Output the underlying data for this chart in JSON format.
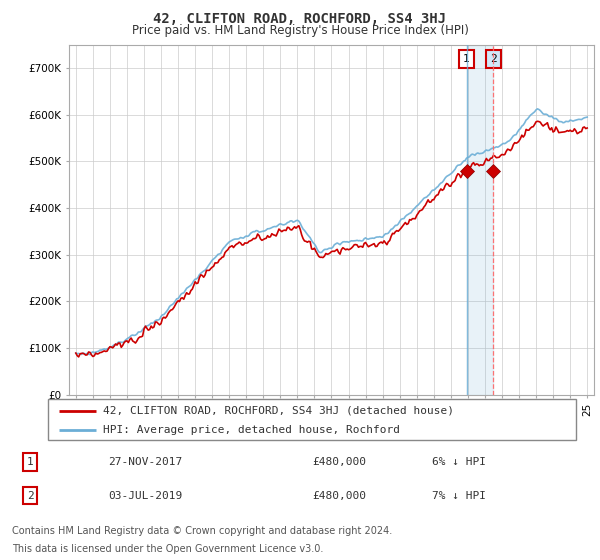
{
  "title": "42, CLIFTON ROAD, ROCHFORD, SS4 3HJ",
  "subtitle": "Price paid vs. HM Land Registry's House Price Index (HPI)",
  "ylim": [
    0,
    750000
  ],
  "yticks": [
    0,
    100000,
    200000,
    300000,
    400000,
    500000,
    600000,
    700000
  ],
  "ytick_labels": [
    "£0",
    "£100K",
    "£200K",
    "£300K",
    "£400K",
    "£500K",
    "£600K",
    "£700K"
  ],
  "grid_color": "#cccccc",
  "hpi_color": "#6baed6",
  "price_color": "#cc0000",
  "t1_year": 2017.92,
  "t2_year": 2019.5,
  "t1_price": 480000,
  "t2_price": 480000,
  "legend_line1": "42, CLIFTON ROAD, ROCHFORD, SS4 3HJ (detached house)",
  "legend_line2": "HPI: Average price, detached house, Rochford",
  "table_row1": [
    "1",
    "27-NOV-2017",
    "£480,000",
    "6% ↓ HPI"
  ],
  "table_row2": [
    "2",
    "03-JUL-2019",
    "£480,000",
    "7% ↓ HPI"
  ],
  "footnote1": "Contains HM Land Registry data © Crown copyright and database right 2024.",
  "footnote2": "This data is licensed under the Open Government Licence v3.0.",
  "title_fontsize": 10,
  "subtitle_fontsize": 8.5,
  "tick_fontsize": 7.5,
  "legend_fontsize": 8,
  "table_fontsize": 8,
  "footnote_fontsize": 7
}
